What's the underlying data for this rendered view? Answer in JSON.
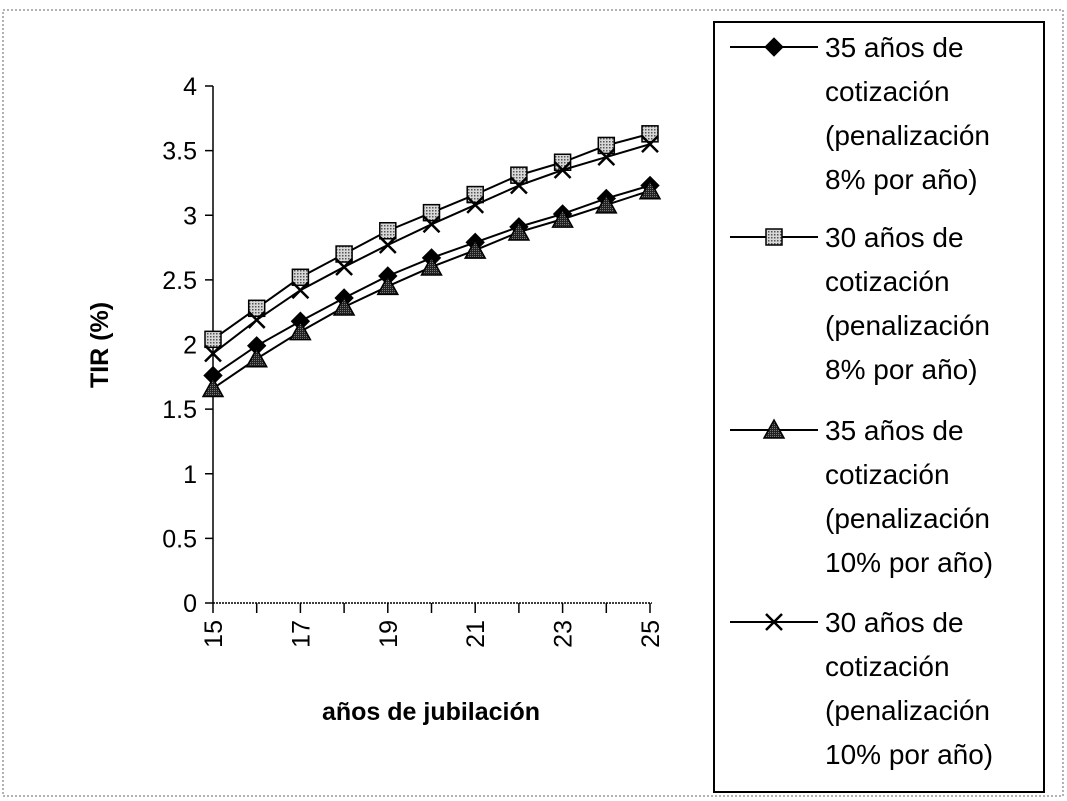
{
  "chart_data": {
    "type": "line",
    "xlabel": "años de jubilación",
    "ylabel": "TIR (%)",
    "xlim": [
      15,
      25
    ],
    "ylim": [
      0,
      4
    ],
    "y_ticks": [
      "0",
      "0.5",
      "1",
      "1.5",
      "2",
      "2.5",
      "3",
      "3.5",
      "4"
    ],
    "x_ticks": [
      "15",
      "17",
      "19",
      "21",
      "23",
      "25"
    ],
    "x": [
      15,
      16,
      17,
      18,
      19,
      20,
      21,
      22,
      23,
      24,
      25
    ],
    "grid": false,
    "legend_position": "right",
    "series": [
      {
        "name": "35 años de cotización (penalización 8% por año)",
        "legend_lines": [
          "35 años de",
          "cotización",
          "(penalización",
          "8% por año)"
        ],
        "marker": "diamond",
        "values": [
          1.76,
          1.99,
          2.18,
          2.36,
          2.53,
          2.67,
          2.79,
          2.91,
          3.01,
          3.13,
          3.23
        ]
      },
      {
        "name": "30 años de cotización (penalización 8% por año)",
        "legend_lines": [
          "30 años de",
          "cotización",
          "(penalización",
          "8% por año)"
        ],
        "marker": "square",
        "values": [
          2.04,
          2.28,
          2.52,
          2.7,
          2.88,
          3.02,
          3.16,
          3.31,
          3.41,
          3.54,
          3.63
        ]
      },
      {
        "name": "35 años de cotización (penalización 10% por año)",
        "legend_lines": [
          "35 años de",
          "cotización",
          "(penalización",
          "10% por año)"
        ],
        "marker": "triangle",
        "values": [
          1.66,
          1.89,
          2.1,
          2.29,
          2.45,
          2.6,
          2.73,
          2.87,
          2.97,
          3.08,
          3.19
        ]
      },
      {
        "name": "30 años de cotización (penalización 10% por año)",
        "legend_lines": [
          "30 años de",
          "cotización",
          "(penalización",
          "10% por año)"
        ],
        "marker": "x",
        "values": [
          1.93,
          2.19,
          2.42,
          2.6,
          2.77,
          2.93,
          3.08,
          3.23,
          3.35,
          3.45,
          3.55
        ]
      }
    ]
  }
}
